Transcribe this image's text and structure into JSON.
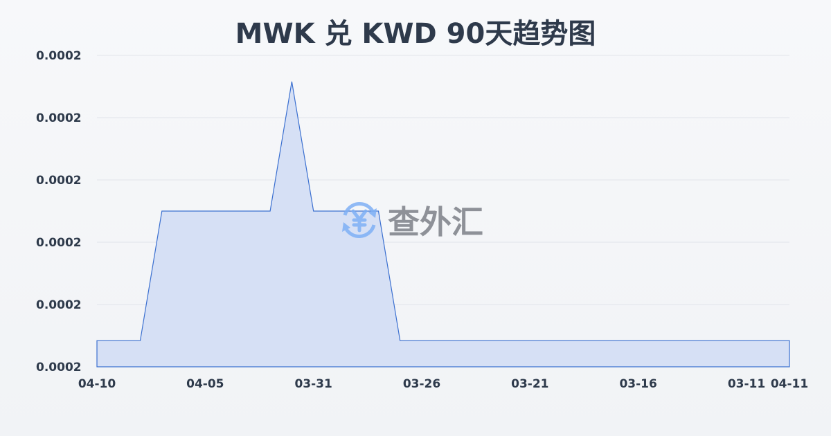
{
  "chart_data": {
    "type": "area",
    "title": "MWK 兑 KWD 90天趋势图",
    "xlabel": "",
    "ylabel": "",
    "x_tick_labels": [
      "04-10",
      "04-05",
      "03-31",
      "03-26",
      "03-21",
      "03-16",
      "03-11",
      "04-11"
    ],
    "y_tick_labels": [
      "0.0002",
      "0.0002",
      "0.0002",
      "0.0002",
      "0.0002",
      "0.0002"
    ],
    "ylim": [
      0.000175,
      0.000225
    ],
    "x_reversed": true,
    "grid": true,
    "points": [
      {
        "x": "04-10",
        "y": 0.0001792
      },
      {
        "x": "04-08",
        "y": 0.0001792
      },
      {
        "x": "04-07",
        "y": 0.0002
      },
      {
        "x": "04-02",
        "y": 0.0002
      },
      {
        "x": "04-01",
        "y": 0.0002208
      },
      {
        "x": "03-31",
        "y": 0.0002
      },
      {
        "x": "03-28",
        "y": 0.0002
      },
      {
        "x": "03-27",
        "y": 0.0001792
      },
      {
        "x": "04-11",
        "y": 0.0001792
      }
    ],
    "line_color": "#3a6fd0",
    "fill_color": "#d6e0f5"
  },
  "watermark": {
    "text": "查外汇",
    "icon": "yen-exchange-icon",
    "color": "#7fb0f5"
  }
}
